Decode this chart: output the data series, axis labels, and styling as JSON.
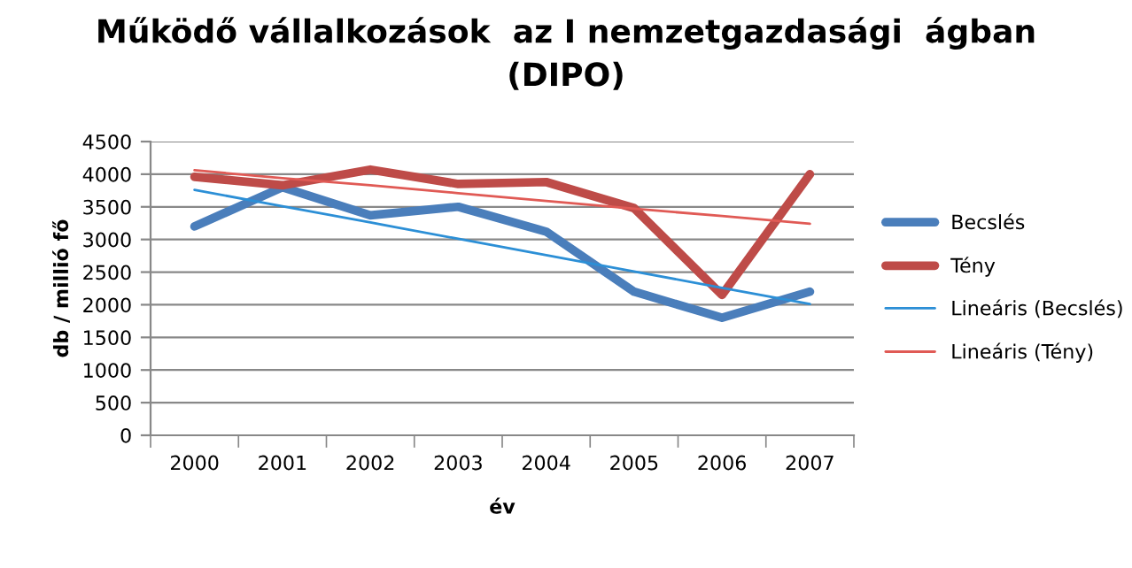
{
  "chart_data": {
    "type": "line",
    "title": "Működő vállalkozások  az I nemzetgazdasági  ágban\n(DIPO)",
    "xlabel": "év",
    "ylabel": "db / millió fő",
    "categories": [
      "2000",
      "2001",
      "2002",
      "2003",
      "2004",
      "2005",
      "2006",
      "2007"
    ],
    "series": [
      {
        "name": "Becslés",
        "color": "#4a7ebb",
        "values": [
          3200,
          3800,
          3370,
          3500,
          3120,
          2200,
          1800,
          2200
        ]
      },
      {
        "name": "Tény",
        "color": "#be4b48",
        "values": [
          3960,
          3830,
          4070,
          3850,
          3880,
          3480,
          2150,
          4000
        ]
      },
      {
        "name": "Lineáris (Becslés)",
        "color": "#2c8fd6",
        "values": [
          3760,
          3510,
          3260,
          3010,
          2760,
          2510,
          2260,
          2010
        ]
      },
      {
        "name": "Lineáris (Tény)",
        "color": "#e05a55",
        "values": [
          4060,
          3940,
          3830,
          3710,
          3590,
          3470,
          3360,
          3240
        ]
      }
    ],
    "ylim": [
      0,
      4500
    ],
    "yticks": [
      0,
      500,
      1000,
      1500,
      2000,
      2500,
      3000,
      3500,
      4000,
      4500
    ],
    "grid": "y",
    "legend": "right"
  }
}
